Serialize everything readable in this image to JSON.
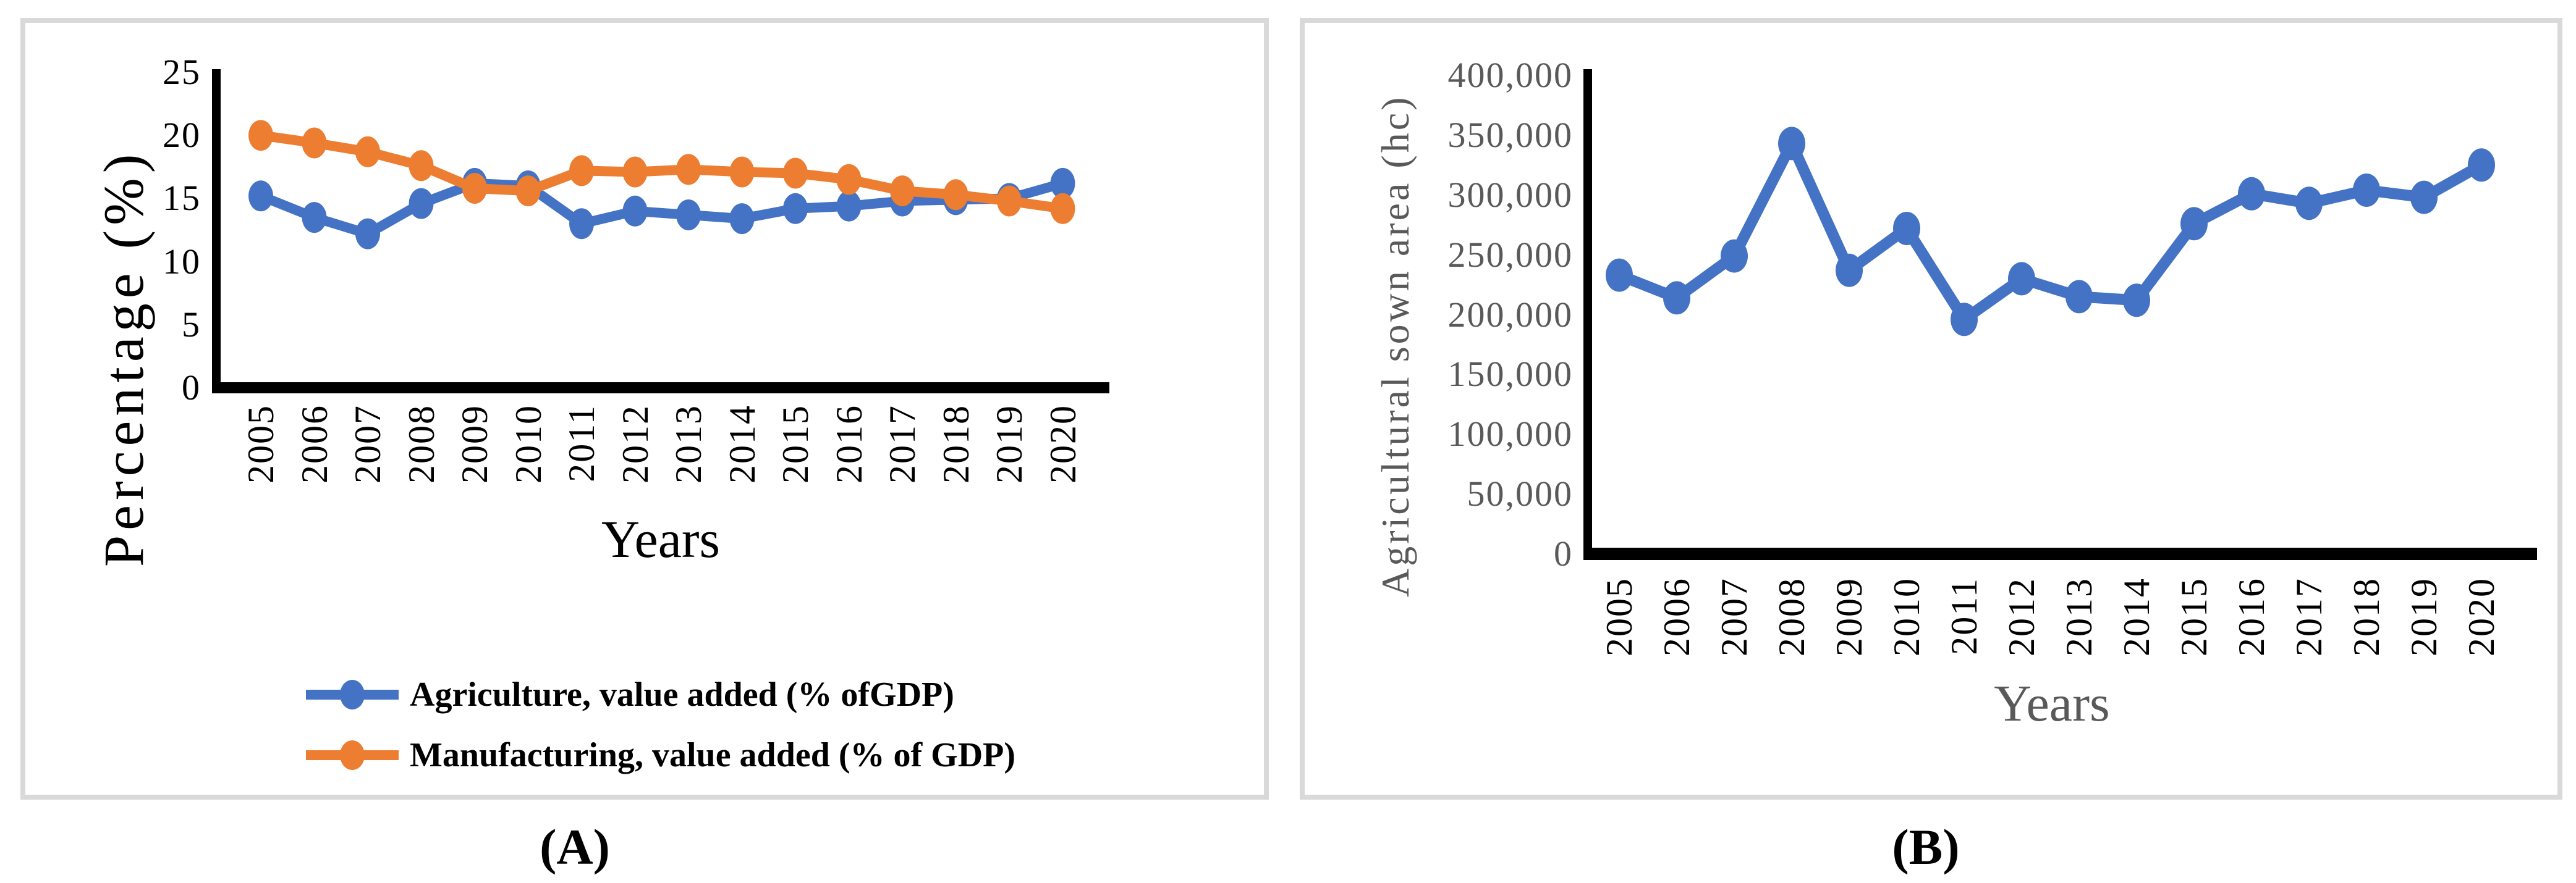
{
  "colors": {
    "series_blue": "#4472C4",
    "series_orange": "#ED7D31",
    "axis_black": "#000000",
    "panel_border_gray": "#D9D9D9",
    "muted_gray_text": "#595959"
  },
  "chart_data": [
    {
      "type": "line",
      "panel": "A",
      "caption": "(A)",
      "xlabel": "Years",
      "ylabel": "Percentage (%)",
      "ylim": [
        0,
        25
      ],
      "ytick_step": 5,
      "grid": false,
      "legend_position": "bottom-left",
      "y_tick_labels": [
        "25",
        "20",
        "15",
        "10",
        "5",
        "0"
      ],
      "categories": [
        "2005",
        "2006",
        "2007",
        "2008",
        "2009",
        "2010",
        "2011",
        "2012",
        "2013",
        "2014",
        "2015",
        "2016",
        "2017",
        "2018",
        "2019",
        "2020"
      ],
      "series": [
        {
          "name": "Agriculture, value added (% ofGDP)",
          "color": "#4472C4",
          "values": [
            15.2,
            13.5,
            12.2,
            14.6,
            16.2,
            16.0,
            13.0,
            14.0,
            13.7,
            13.4,
            14.2,
            14.4,
            14.8,
            14.9,
            15.0,
            16.2
          ]
        },
        {
          "name": "Manufacturing, value added (% of GDP)",
          "color": "#ED7D31",
          "values": [
            20.0,
            19.4,
            18.7,
            17.6,
            15.8,
            15.6,
            17.2,
            17.1,
            17.3,
            17.1,
            17.0,
            16.5,
            15.6,
            15.3,
            14.8,
            14.2
          ]
        }
      ]
    },
    {
      "type": "line",
      "panel": "B",
      "caption": "(B)",
      "xlabel": "Years",
      "ylabel": "Agricultural sown area (hc)",
      "ylim": [
        0,
        400000
      ],
      "ytick_step": 50000,
      "grid": false,
      "legend_position": "none",
      "y_tick_labels": [
        "400,000",
        "350,000",
        "300,000",
        "250,000",
        "200,000",
        "150,000",
        "100,000",
        "50,000",
        "0"
      ],
      "categories": [
        "2005",
        "2006",
        "2007",
        "2008",
        "2009",
        "2010",
        "2011",
        "2012",
        "2013",
        "2014",
        "2015",
        "2016",
        "2017",
        "2018",
        "2019",
        "2020"
      ],
      "series": [
        {
          "name": "Agricultural sown area",
          "color": "#4472C4",
          "values": [
            233000,
            214000,
            249000,
            343000,
            237000,
            272000,
            196000,
            230000,
            215000,
            212000,
            276000,
            301000,
            293000,
            304000,
            298000,
            325000
          ]
        }
      ]
    }
  ]
}
